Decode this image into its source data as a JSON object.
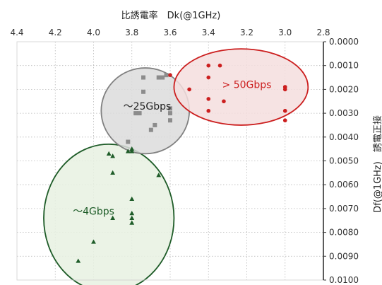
{
  "chart_data": {
    "type": "scatter",
    "xlabel": "比誘電率　Dk(@1GHz)",
    "ylabel": "Df(@1GHz)　誘電正接",
    "xlim": [
      4.4,
      2.8
    ],
    "ylim": [
      0.0,
      0.01
    ],
    "x_reversed": true,
    "y_reversed": true,
    "grid": true,
    "x_ticks": [
      "4.4",
      "4.2",
      "4.0",
      "3.8",
      "3.6",
      "3.4",
      "3.2",
      "3.0",
      "2.8"
    ],
    "y_ticks": [
      "0.0000",
      "0.0010",
      "0.0020",
      "0.0030",
      "0.0040",
      "0.0050",
      "0.0060",
      "0.0070",
      "0.0080",
      "0.0090",
      "0.0100"
    ],
    "series": [
      {
        "marker": "triangle",
        "color": "#1e5c28",
        "points": [
          [
            4.08,
            0.0092
          ],
          [
            4.0,
            0.0084
          ],
          [
            3.92,
            0.0047
          ],
          [
            3.9,
            0.0048
          ],
          [
            3.9,
            0.0055
          ],
          [
            3.9,
            0.0074
          ],
          [
            3.82,
            0.0046
          ],
          [
            3.8,
            0.0045
          ],
          [
            3.8,
            0.0046
          ],
          [
            3.8,
            0.0066
          ],
          [
            3.8,
            0.0072
          ],
          [
            3.8,
            0.0074
          ],
          [
            3.8,
            0.0076
          ],
          [
            3.66,
            0.0056
          ]
        ]
      },
      {
        "marker": "square",
        "color": "#8c8c8c",
        "points": [
          [
            3.82,
            0.0042
          ],
          [
            3.78,
            0.003
          ],
          [
            3.76,
            0.003
          ],
          [
            3.74,
            0.0015
          ],
          [
            3.74,
            0.0021
          ],
          [
            3.7,
            0.0037
          ],
          [
            3.68,
            0.0035
          ],
          [
            3.66,
            0.0015
          ],
          [
            3.64,
            0.0015
          ],
          [
            3.62,
            0.0014
          ],
          [
            3.6,
            0.0028
          ],
          [
            3.6,
            0.003
          ],
          [
            3.6,
            0.0033
          ]
        ]
      },
      {
        "marker": "circle",
        "color": "#cc1f1f",
        "points": [
          [
            3.6,
            0.0014
          ],
          [
            3.5,
            0.002
          ],
          [
            3.4,
            0.001
          ],
          [
            3.4,
            0.0015
          ],
          [
            3.4,
            0.0024
          ],
          [
            3.4,
            0.0029
          ],
          [
            3.34,
            0.001
          ],
          [
            3.32,
            0.0025
          ],
          [
            3.0,
            0.0019
          ],
          [
            3.0,
            0.0019
          ],
          [
            3.0,
            0.002
          ],
          [
            3.0,
            0.0029
          ],
          [
            3.0,
            0.0033
          ]
        ]
      }
    ],
    "regions": [
      {
        "label": "～4Gbps",
        "cx": 3.92,
        "cy": 0.0074,
        "rx": 0.34,
        "ry": 0.0031,
        "fill": "#e7f1e2",
        "stroke": "#1e5c28",
        "text_color": "#1e5c28"
      },
      {
        "label": "～25Gbps",
        "cx": 3.73,
        "cy": 0.0029,
        "rx": 0.23,
        "ry": 0.0018,
        "fill": "#dcdcdc",
        "stroke": "#808080",
        "text_color": "#222222"
      },
      {
        "label": "> 50Gbps",
        "cx": 3.23,
        "cy": 0.0019,
        "rx": 0.35,
        "ry": 0.0016,
        "fill": "#f5dede",
        "stroke": "#cc1f1f",
        "text_color": "#cc1f1f"
      }
    ]
  }
}
